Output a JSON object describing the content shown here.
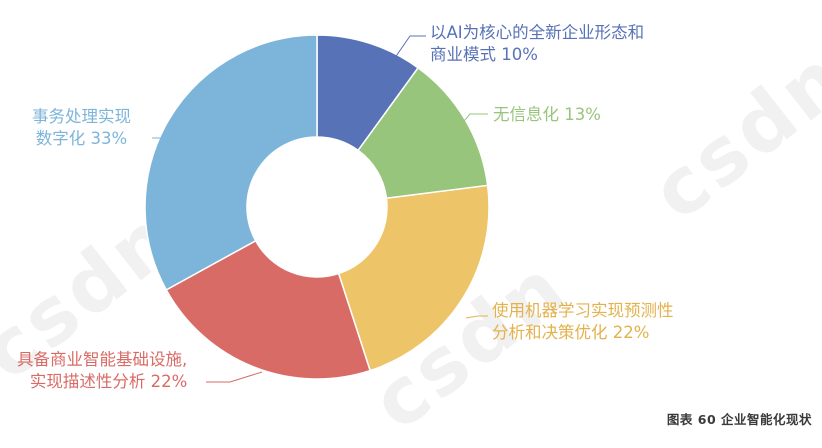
{
  "caption": "图表 60  企业智能化现状",
  "watermark": "csdn",
  "chart_data": {
    "type": "pie",
    "donut": true,
    "slices": [
      {
        "label": "以AI为核心的全新企业形态和\n商业模式 10%",
        "value": 10,
        "color": "#5872B8"
      },
      {
        "label": "无信息化 13%",
        "value": 13,
        "color": "#98C57C"
      },
      {
        "label": "使用机器学习实现预测性\n分析和决策优化 22%",
        "value": 22,
        "color": "#EDC468"
      },
      {
        "label": "具备商业智能基础设施,\n实现描述性分析 22%",
        "value": 22,
        "color": "#D96B66"
      },
      {
        "label": "事务处理实现\n数字化 33%",
        "value": 33,
        "color": "#7DB5DA"
      }
    ],
    "start_angle": 0,
    "direction": "clockwise"
  }
}
